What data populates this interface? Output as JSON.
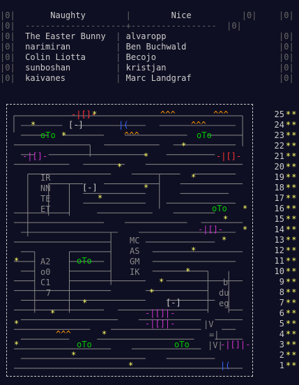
{
  "table": {
    "header": {
      "left": "Naughty",
      "right": "Nice"
    },
    "rows": [
      {
        "naughty": "The Easter Bunny",
        "nice": "alvaropp"
      },
      {
        "naughty": "narimiran",
        "nice": "Ben Buchwald"
      },
      {
        "naughty": "Colin Liotta",
        "nice": "Becojo"
      },
      {
        "naughty": "sunboshan",
        "nice": "kristjan"
      },
      {
        "naughty": "kaivanes",
        "nice": "Marc Landgraf"
      }
    ]
  },
  "calendar": {
    "days": [
      {
        "day": "25",
        "stars": "**"
      },
      {
        "day": "24",
        "stars": "**"
      },
      {
        "day": "23",
        "stars": "**"
      },
      {
        "day": "22",
        "stars": "**"
      },
      {
        "day": "21",
        "stars": "**"
      },
      {
        "day": "20",
        "stars": "**"
      },
      {
        "day": "19",
        "stars": "**"
      },
      {
        "day": "18",
        "stars": "**"
      },
      {
        "day": "17",
        "stars": "**"
      },
      {
        "day": "16",
        "stars": "**"
      },
      {
        "day": "15",
        "stars": "**"
      },
      {
        "day": "14",
        "stars": "**"
      },
      {
        "day": "13",
        "stars": "**"
      },
      {
        "day": "12",
        "stars": "**"
      },
      {
        "day": "11",
        "stars": "**"
      },
      {
        "day": "10",
        "stars": "**"
      },
      {
        "day": "9",
        "stars": "**"
      },
      {
        "day": "8",
        "stars": "**"
      },
      {
        "day": "7",
        "stars": "**"
      },
      {
        "day": "6",
        "stars": "**"
      },
      {
        "day": "5",
        "stars": "**"
      },
      {
        "day": "4",
        "stars": "**"
      },
      {
        "day": "3",
        "stars": "**"
      },
      {
        "day": "2",
        "stars": "**"
      },
      {
        "day": "1",
        "stars": "**"
      }
    ],
    "labels": {
      "ir": "IR",
      "nn": "NN",
      "te": "TE",
      "et": "ET",
      "mc": "MC",
      "as": "AS",
      "gm": "GM",
      "ik": "IK",
      "a2": "A2",
      "o0": "o0",
      "c1": "C1",
      "seven": "7",
      "b": "b",
      "du": "du",
      "eg": "eg",
      "v": "|V",
      "vb": "|V|",
      "eq": "=|"
    },
    "tokens": {
      "caps": "-|[]-",
      "box": "[-]",
      "oto": "oTo",
      "ahh": "^^^",
      "paren": "|(",
      "star": "*",
      "ubox": "-|[]|-"
    },
    "colors": {
      "accent": "#ffff66",
      "background": "#0f0f23"
    }
  }
}
